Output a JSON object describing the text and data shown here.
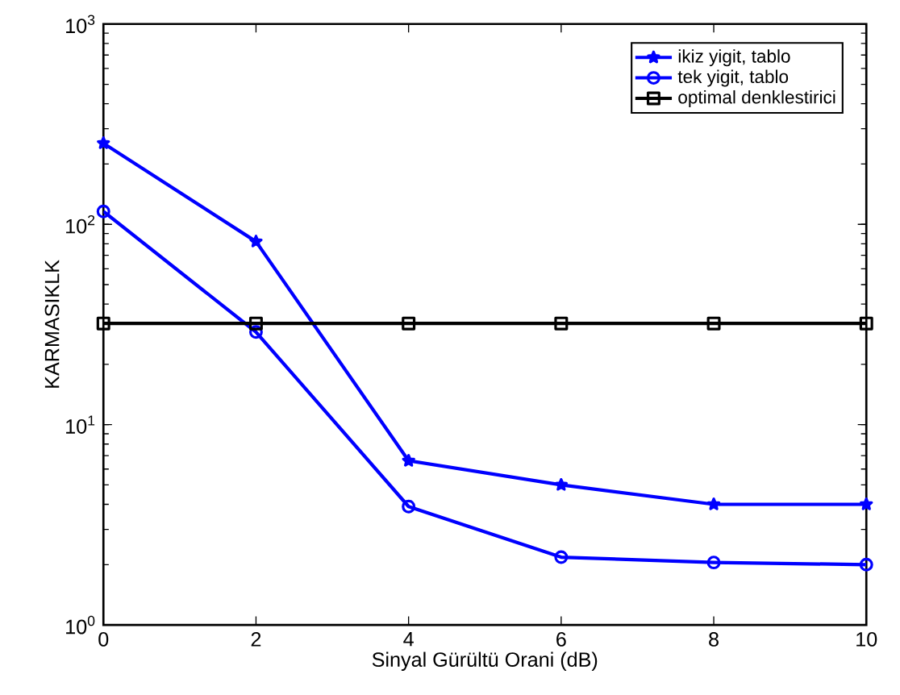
{
  "chart_data": {
    "type": "line",
    "xlabel": "Sinyal Gürültü Orani (dB)",
    "ylabel": "KARMASIKLK",
    "log": "y",
    "x": [
      0,
      2,
      4,
      6,
      8,
      10
    ],
    "xlim": [
      0,
      10
    ],
    "xticks": [
      0,
      2,
      4,
      6,
      8,
      10
    ],
    "ylim": [
      1,
      1000
    ],
    "yticks": [
      {
        "value": 1,
        "label": "10$^{0}$"
      },
      {
        "value": 10,
        "label": "10$^{1}$"
      },
      {
        "value": 100,
        "label": "10$^{2}$"
      },
      {
        "value": 1000,
        "label": "10$^{3}$"
      }
    ],
    "series": [
      {
        "name": "ikiz yigit, tablo",
        "color": "#0000ff",
        "marker": "star",
        "values": [
          254,
          82,
          6.6,
          5.0,
          4.0,
          4.0
        ]
      },
      {
        "name": "tek yigit, tablo",
        "color": "#0000ff",
        "marker": "circle",
        "values": [
          116,
          29,
          3.9,
          2.18,
          2.05,
          2.0
        ]
      },
      {
        "name": "optimal denklestirici",
        "color": "#000000",
        "marker": "square",
        "values": [
          32,
          32,
          32,
          32,
          32,
          32
        ]
      }
    ],
    "grid": false,
    "legend": "top right",
    "line_style": "solid"
  }
}
